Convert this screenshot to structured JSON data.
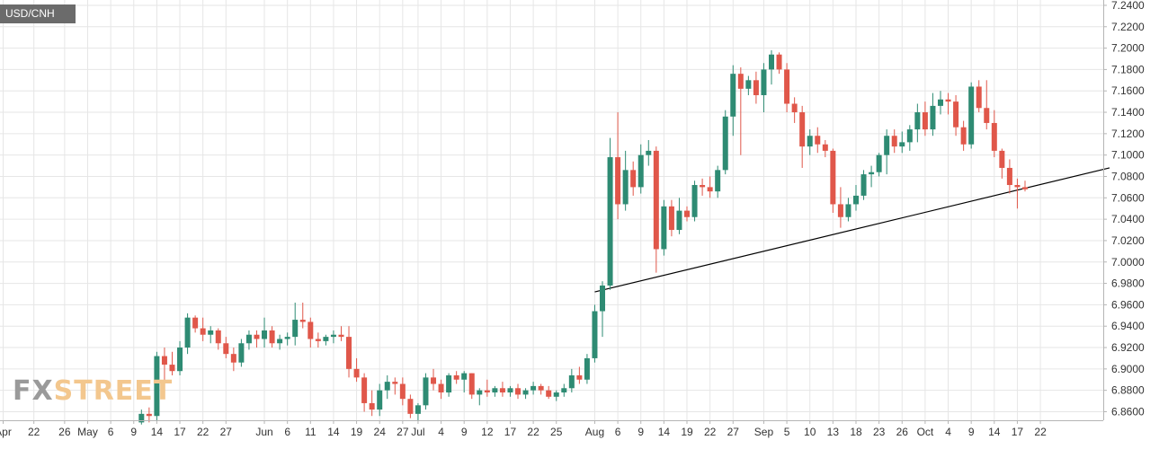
{
  "header": {
    "symbol": "USD/CNH"
  },
  "branding": {
    "logo_fx": "FX",
    "logo_street": "STREET"
  },
  "colors": {
    "up": "#2e8b73",
    "down": "#e0574a",
    "grid": "#e6e6e6",
    "axis": "#b5b5b5",
    "text": "#333333",
    "trendline": "#000000"
  },
  "chart_data": {
    "type": "candlestick",
    "title": "USD/CNH",
    "y_axis_position": "right",
    "ylim": [
      6.852,
      7.245
    ],
    "y_ticks": [
      "7.2400",
      "7.2200",
      "7.2000",
      "7.1800",
      "7.1600",
      "7.1400",
      "7.1200",
      "7.1000",
      "7.0800",
      "7.0600",
      "7.0400",
      "7.0200",
      "7.0000",
      "6.9800",
      "6.9600",
      "6.9400",
      "6.9200",
      "6.9000",
      "6.8800",
      "6.8600"
    ],
    "x_ticks": [
      {
        "label": "Apr",
        "i": 0
      },
      {
        "label": "22",
        "i": 4
      },
      {
        "label": "26",
        "i": 8
      },
      {
        "label": "May",
        "i": 11
      },
      {
        "label": "6",
        "i": 14
      },
      {
        "label": "9",
        "i": 17
      },
      {
        "label": "14",
        "i": 20
      },
      {
        "label": "17",
        "i": 23
      },
      {
        "label": "22",
        "i": 26
      },
      {
        "label": "27",
        "i": 29
      },
      {
        "label": "Jun",
        "i": 34
      },
      {
        "label": "6",
        "i": 37
      },
      {
        "label": "11",
        "i": 40
      },
      {
        "label": "14",
        "i": 43
      },
      {
        "label": "19",
        "i": 46
      },
      {
        "label": "24",
        "i": 49
      },
      {
        "label": "27",
        "i": 52
      },
      {
        "label": "Jul",
        "i": 54
      },
      {
        "label": "4",
        "i": 57
      },
      {
        "label": "9",
        "i": 60
      },
      {
        "label": "12",
        "i": 63
      },
      {
        "label": "17",
        "i": 66
      },
      {
        "label": "22",
        "i": 69
      },
      {
        "label": "25",
        "i": 72
      },
      {
        "label": "Aug",
        "i": 77
      },
      {
        "label": "6",
        "i": 80
      },
      {
        "label": "9",
        "i": 83
      },
      {
        "label": "14",
        "i": 86
      },
      {
        "label": "19",
        "i": 89
      },
      {
        "label": "22",
        "i": 92
      },
      {
        "label": "27",
        "i": 95
      },
      {
        "label": "Sep",
        "i": 99
      },
      {
        "label": "5",
        "i": 102
      },
      {
        "label": "10",
        "i": 105
      },
      {
        "label": "13",
        "i": 108
      },
      {
        "label": "18",
        "i": 111
      },
      {
        "label": "23",
        "i": 114
      },
      {
        "label": "26",
        "i": 117
      },
      {
        "label": "Oct",
        "i": 120
      },
      {
        "label": "4",
        "i": 123
      },
      {
        "label": "9",
        "i": 126
      },
      {
        "label": "14",
        "i": 129
      },
      {
        "label": "17",
        "i": 132
      },
      {
        "label": "22",
        "i": 135
      }
    ],
    "candles": [
      [
        18,
        6.85,
        6.862,
        6.848,
        6.858
      ],
      [
        19,
        6.858,
        6.864,
        6.85,
        6.856
      ],
      [
        20,
        6.856,
        6.916,
        6.852,
        6.912
      ],
      [
        21,
        6.912,
        6.92,
        6.886,
        6.904
      ],
      [
        22,
        6.904,
        6.916,
        6.894,
        6.898
      ],
      [
        23,
        6.898,
        6.926,
        6.894,
        6.92
      ],
      [
        24,
        6.92,
        6.952,
        6.914,
        6.948
      ],
      [
        25,
        6.948,
        6.95,
        6.934,
        6.938
      ],
      [
        26,
        6.938,
        6.948,
        6.926,
        6.932
      ],
      [
        27,
        6.932,
        6.94,
        6.924,
        6.936
      ],
      [
        28,
        6.936,
        6.938,
        6.918,
        6.924
      ],
      [
        29,
        6.924,
        6.93,
        6.91,
        6.914
      ],
      [
        30,
        6.914,
        6.92,
        6.898,
        6.906
      ],
      [
        31,
        6.906,
        6.928,
        6.902,
        6.924
      ],
      [
        32,
        6.924,
        6.936,
        6.918,
        6.932
      ],
      [
        33,
        6.932,
        6.936,
        6.92,
        6.928
      ],
      [
        34,
        6.928,
        6.948,
        6.92,
        6.936
      ],
      [
        35,
        6.936,
        6.94,
        6.92,
        6.924
      ],
      [
        36,
        6.924,
        6.932,
        6.918,
        6.928
      ],
      [
        37,
        6.928,
        6.934,
        6.922,
        6.93
      ],
      [
        38,
        6.93,
        6.962,
        6.922,
        6.946
      ],
      [
        39,
        6.946,
        6.962,
        6.938,
        6.944
      ],
      [
        40,
        6.944,
        6.948,
        6.92,
        6.928
      ],
      [
        41,
        6.928,
        6.934,
        6.92,
        6.926
      ],
      [
        42,
        6.926,
        6.932,
        6.922,
        6.93
      ],
      [
        43,
        6.93,
        6.936,
        6.924,
        6.932
      ],
      [
        44,
        6.932,
        6.94,
        6.926,
        6.93
      ],
      [
        45,
        6.93,
        6.94,
        6.892,
        6.9
      ],
      [
        46,
        6.9,
        6.91,
        6.888,
        6.892
      ],
      [
        47,
        6.892,
        6.896,
        6.86,
        6.868
      ],
      [
        48,
        6.868,
        6.88,
        6.856,
        6.862
      ],
      [
        49,
        6.862,
        6.886,
        6.856,
        6.88
      ],
      [
        50,
        6.88,
        6.894,
        6.872,
        6.888
      ],
      [
        51,
        6.888,
        6.892,
        6.876,
        6.886
      ],
      [
        52,
        6.886,
        6.892,
        6.866,
        6.872
      ],
      [
        53,
        6.872,
        6.876,
        6.854,
        6.858
      ],
      [
        54,
        6.858,
        6.868,
        6.852,
        6.866
      ],
      [
        55,
        6.866,
        6.896,
        6.862,
        6.892
      ],
      [
        56,
        6.892,
        6.9,
        6.88,
        6.886
      ],
      [
        57,
        6.886,
        6.89,
        6.872,
        6.878
      ],
      [
        58,
        6.878,
        6.896,
        6.874,
        6.894
      ],
      [
        59,
        6.894,
        6.898,
        6.886,
        6.89
      ],
      [
        60,
        6.89,
        6.898,
        6.878,
        6.896
      ],
      [
        61,
        6.896,
        6.896,
        6.872,
        6.876
      ],
      [
        62,
        6.876,
        6.882,
        6.866,
        6.88
      ],
      [
        63,
        6.88,
        6.89,
        6.874,
        6.878
      ],
      [
        64,
        6.878,
        6.884,
        6.874,
        6.882
      ],
      [
        65,
        6.882,
        6.888,
        6.874,
        6.878
      ],
      [
        66,
        6.878,
        6.884,
        6.874,
        6.882
      ],
      [
        67,
        6.882,
        6.886,
        6.872,
        6.876
      ],
      [
        68,
        6.876,
        6.882,
        6.872,
        6.88
      ],
      [
        69,
        6.88,
        6.888,
        6.876,
        6.884
      ],
      [
        70,
        6.884,
        6.886,
        6.876,
        6.88
      ],
      [
        71,
        6.88,
        6.884,
        6.872,
        6.874
      ],
      [
        72,
        6.874,
        6.88,
        6.87,
        6.878
      ],
      [
        73,
        6.878,
        6.886,
        6.874,
        6.882
      ],
      [
        74,
        6.882,
        6.9,
        6.878,
        6.894
      ],
      [
        75,
        6.894,
        6.902,
        6.886,
        6.89
      ],
      [
        76,
        6.89,
        6.914,
        6.886,
        6.91
      ],
      [
        77,
        6.91,
        6.96,
        6.906,
        6.954
      ],
      [
        78,
        6.954,
        6.982,
        6.93,
        6.978
      ],
      [
        79,
        6.978,
        7.116,
        6.974,
        7.098
      ],
      [
        80,
        7.098,
        7.14,
        7.04,
        7.054
      ],
      [
        81,
        7.054,
        7.104,
        7.048,
        7.086
      ],
      [
        82,
        7.086,
        7.094,
        7.062,
        7.07
      ],
      [
        83,
        7.07,
        7.11,
        7.064,
        7.1
      ],
      [
        84,
        7.1,
        7.114,
        7.09,
        7.104
      ],
      [
        85,
        7.104,
        7.108,
        6.99,
        7.012
      ],
      [
        86,
        7.012,
        7.058,
        7.006,
        7.052
      ],
      [
        87,
        7.052,
        7.058,
        7.024,
        7.03
      ],
      [
        88,
        7.03,
        7.06,
        7.026,
        7.048
      ],
      [
        89,
        7.048,
        7.052,
        7.038,
        7.042
      ],
      [
        90,
        7.042,
        7.076,
        7.038,
        7.072
      ],
      [
        91,
        7.072,
        7.078,
        7.062,
        7.07
      ],
      [
        92,
        7.07,
        7.08,
        7.06,
        7.066
      ],
      [
        93,
        7.066,
        7.09,
        7.06,
        7.086
      ],
      [
        94,
        7.086,
        7.142,
        7.082,
        7.136
      ],
      [
        95,
        7.136,
        7.184,
        7.118,
        7.176
      ],
      [
        96,
        7.176,
        7.182,
        7.1,
        7.162
      ],
      [
        97,
        7.162,
        7.174,
        7.156,
        7.17
      ],
      [
        98,
        7.17,
        7.178,
        7.148,
        7.156
      ],
      [
        99,
        7.156,
        7.186,
        7.14,
        7.18
      ],
      [
        100,
        7.18,
        7.198,
        7.166,
        7.194
      ],
      [
        101,
        7.194,
        7.196,
        7.176,
        7.18
      ],
      [
        102,
        7.18,
        7.186,
        7.14,
        7.148
      ],
      [
        103,
        7.148,
        7.154,
        7.13,
        7.14
      ],
      [
        104,
        7.14,
        7.146,
        7.088,
        7.108
      ],
      [
        105,
        7.108,
        7.124,
        7.1,
        7.118
      ],
      [
        106,
        7.118,
        7.126,
        7.102,
        7.11
      ],
      [
        107,
        7.11,
        7.114,
        7.098,
        7.104
      ],
      [
        108,
        7.104,
        7.106,
        7.046,
        7.054
      ],
      [
        109,
        7.054,
        7.07,
        7.032,
        7.042
      ],
      [
        110,
        7.042,
        7.06,
        7.038,
        7.054
      ],
      [
        111,
        7.054,
        7.072,
        7.048,
        7.062
      ],
      [
        112,
        7.062,
        7.086,
        7.058,
        7.082
      ],
      [
        113,
        7.082,
        7.09,
        7.07,
        7.084
      ],
      [
        114,
        7.084,
        7.102,
        7.08,
        7.1
      ],
      [
        115,
        7.1,
        7.124,
        7.082,
        7.118
      ],
      [
        116,
        7.118,
        7.124,
        7.102,
        7.108
      ],
      [
        117,
        7.108,
        7.122,
        7.102,
        7.112
      ],
      [
        118,
        7.112,
        7.128,
        7.104,
        7.124
      ],
      [
        119,
        7.124,
        7.148,
        7.112,
        7.14
      ],
      [
        120,
        7.14,
        7.15,
        7.118,
        7.124
      ],
      [
        121,
        7.124,
        7.158,
        7.118,
        7.146
      ],
      [
        122,
        7.146,
        7.16,
        7.138,
        7.152
      ],
      [
        123,
        7.152,
        7.158,
        7.138,
        7.15
      ],
      [
        124,
        7.15,
        7.156,
        7.118,
        7.126
      ],
      [
        125,
        7.126,
        7.132,
        7.104,
        7.11
      ],
      [
        126,
        7.11,
        7.168,
        7.106,
        7.164
      ],
      [
        127,
        7.164,
        7.17,
        7.14,
        7.144
      ],
      [
        128,
        7.144,
        7.17,
        7.124,
        7.13
      ],
      [
        129,
        7.13,
        7.142,
        7.098,
        7.104
      ],
      [
        130,
        7.104,
        7.106,
        7.078,
        7.088
      ],
      [
        131,
        7.088,
        7.096,
        7.064,
        7.072
      ],
      [
        132,
        7.072,
        7.078,
        7.05,
        7.07
      ],
      [
        133,
        7.07,
        7.076,
        7.066,
        7.068
      ]
    ],
    "annotations": [
      {
        "type": "trendline",
        "from": {
          "i": 77,
          "value": 6.972
        },
        "to": {
          "i": 144,
          "value": 7.088
        }
      }
    ]
  }
}
